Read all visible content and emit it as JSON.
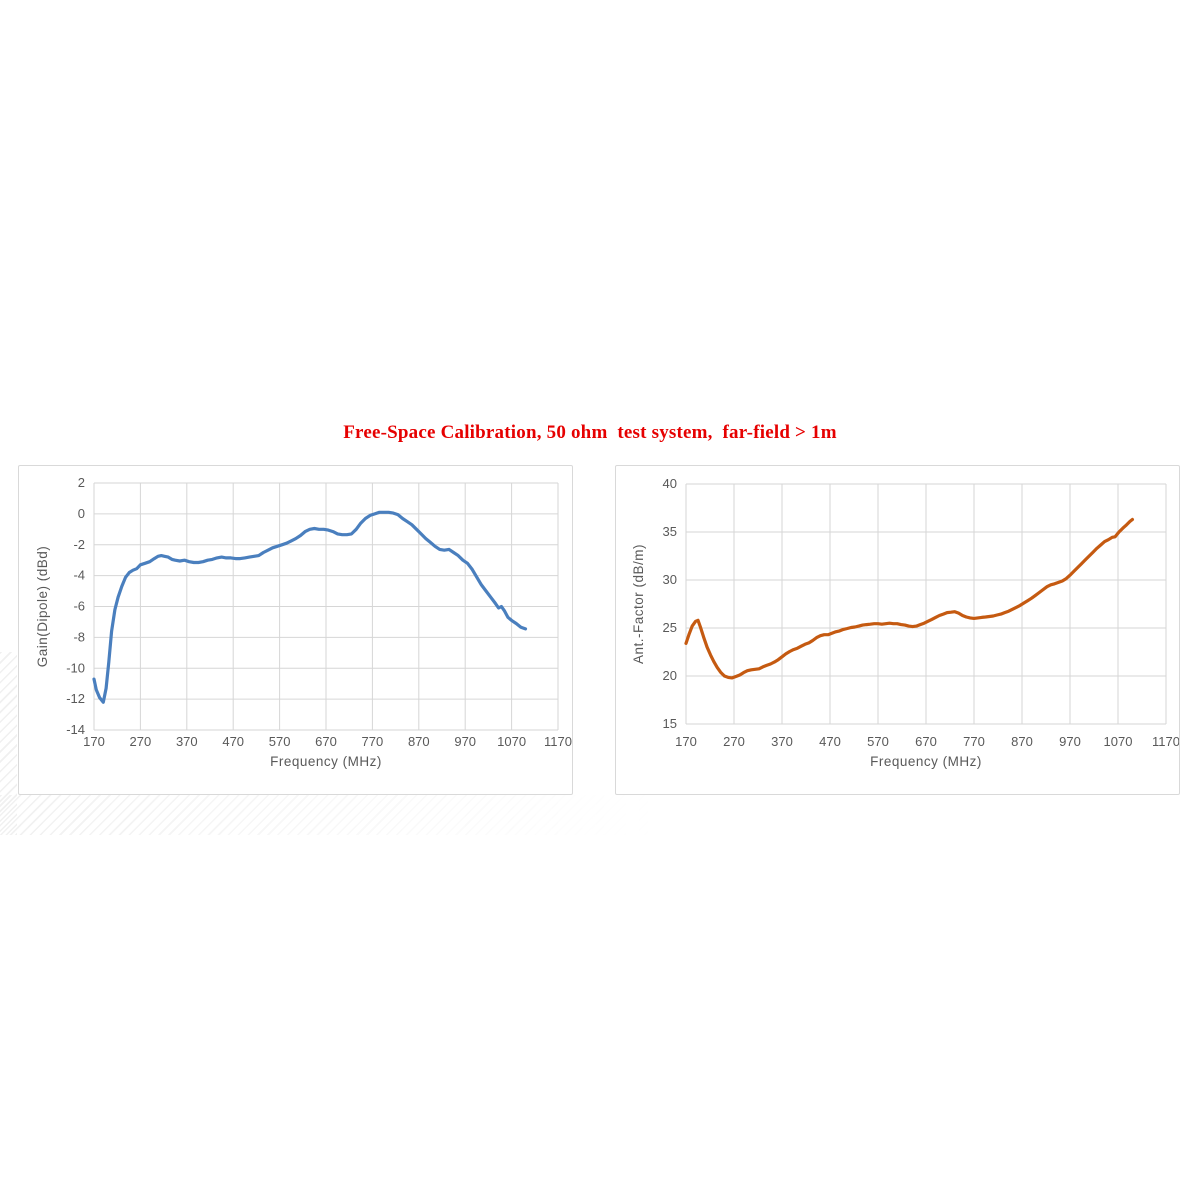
{
  "title": {
    "text": "Free-Space Calibration, 50 ohm  test system,  far-field > 1m",
    "color": "#e60000"
  },
  "style": {
    "grid_color": "#d6d6d6",
    "tick_color": "#595959",
    "panel_border": "#d9d9d9"
  },
  "chart_data": [
    {
      "type": "line",
      "title": "",
      "xlabel": "Frequency (MHz)",
      "ylabel": "Gain(Dipole) (dBd)",
      "xlim": [
        170,
        1170
      ],
      "xtick_step": 100,
      "xticks": [
        170,
        270,
        370,
        470,
        570,
        670,
        770,
        870,
        970,
        1070,
        1170
      ],
      "ylim": [
        -14,
        2
      ],
      "ytick_step": 2,
      "yticks": [
        2,
        0,
        -2,
        -4,
        -6,
        -8,
        -10,
        -12,
        -14
      ],
      "grid": true,
      "legend": "none",
      "series": [
        {
          "name": "Gain (dBd)",
          "color": "#4a7fbe",
          "points": [
            [
              170,
              -10.7
            ],
            [
              175,
              -11.4
            ],
            [
              182,
              -11.9
            ],
            [
              190,
              -12.2
            ],
            [
              196,
              -11.3
            ],
            [
              202,
              -9.6
            ],
            [
              208,
              -7.6
            ],
            [
              215,
              -6.2
            ],
            [
              222,
              -5.4
            ],
            [
              230,
              -4.7
            ],
            [
              238,
              -4.1
            ],
            [
              246,
              -3.8
            ],
            [
              254,
              -3.65
            ],
            [
              262,
              -3.55
            ],
            [
              270,
              -3.3
            ],
            [
              280,
              -3.2
            ],
            [
              290,
              -3.1
            ],
            [
              300,
              -2.9
            ],
            [
              308,
              -2.75
            ],
            [
              315,
              -2.7
            ],
            [
              322,
              -2.75
            ],
            [
              330,
              -2.8
            ],
            [
              338,
              -2.95
            ],
            [
              345,
              -3.0
            ],
            [
              355,
              -3.05
            ],
            [
              365,
              -3.0
            ],
            [
              375,
              -3.1
            ],
            [
              385,
              -3.15
            ],
            [
              395,
              -3.15
            ],
            [
              405,
              -3.1
            ],
            [
              415,
              -3.0
            ],
            [
              425,
              -2.95
            ],
            [
              435,
              -2.85
            ],
            [
              445,
              -2.8
            ],
            [
              455,
              -2.85
            ],
            [
              465,
              -2.85
            ],
            [
              475,
              -2.9
            ],
            [
              485,
              -2.9
            ],
            [
              495,
              -2.85
            ],
            [
              505,
              -2.8
            ],
            [
              515,
              -2.75
            ],
            [
              525,
              -2.7
            ],
            [
              535,
              -2.5
            ],
            [
              545,
              -2.35
            ],
            [
              555,
              -2.2
            ],
            [
              565,
              -2.1
            ],
            [
              575,
              -2.0
            ],
            [
              585,
              -1.9
            ],
            [
              595,
              -1.75
            ],
            [
              605,
              -1.6
            ],
            [
              615,
              -1.4
            ],
            [
              625,
              -1.15
            ],
            [
              635,
              -1.0
            ],
            [
              645,
              -0.95
            ],
            [
              655,
              -1.0
            ],
            [
              665,
              -1.0
            ],
            [
              675,
              -1.05
            ],
            [
              685,
              -1.15
            ],
            [
              695,
              -1.3
            ],
            [
              705,
              -1.35
            ],
            [
              715,
              -1.35
            ],
            [
              725,
              -1.3
            ],
            [
              735,
              -1.0
            ],
            [
              745,
              -0.6
            ],
            [
              755,
              -0.3
            ],
            [
              765,
              -0.1
            ],
            [
              775,
              0.0
            ],
            [
              785,
              0.1
            ],
            [
              795,
              0.1
            ],
            [
              805,
              0.1
            ],
            [
              815,
              0.05
            ],
            [
              825,
              -0.05
            ],
            [
              835,
              -0.3
            ],
            [
              845,
              -0.5
            ],
            [
              855,
              -0.7
            ],
            [
              865,
              -1.0
            ],
            [
              875,
              -1.3
            ],
            [
              885,
              -1.6
            ],
            [
              895,
              -1.85
            ],
            [
              905,
              -2.1
            ],
            [
              915,
              -2.3
            ],
            [
              925,
              -2.35
            ],
            [
              935,
              -2.3
            ],
            [
              945,
              -2.5
            ],
            [
              955,
              -2.7
            ],
            [
              965,
              -3.0
            ],
            [
              975,
              -3.2
            ],
            [
              985,
              -3.6
            ],
            [
              995,
              -4.1
            ],
            [
              1005,
              -4.6
            ],
            [
              1015,
              -5.0
            ],
            [
              1025,
              -5.4
            ],
            [
              1035,
              -5.8
            ],
            [
              1042,
              -6.1
            ],
            [
              1048,
              -6.0
            ],
            [
              1055,
              -6.3
            ],
            [
              1062,
              -6.7
            ],
            [
              1070,
              -6.9
            ],
            [
              1080,
              -7.1
            ],
            [
              1090,
              -7.35
            ],
            [
              1100,
              -7.45
            ]
          ]
        }
      ]
    },
    {
      "type": "line",
      "title": "",
      "xlabel": "Frequency (MHz)",
      "ylabel": "Ant.-Factor (dB/m)",
      "xlim": [
        170,
        1170
      ],
      "xtick_step": 100,
      "xticks": [
        170,
        270,
        370,
        470,
        570,
        670,
        770,
        870,
        970,
        1070,
        1170
      ],
      "ylim": [
        15,
        40
      ],
      "ytick_step": 5,
      "yticks": [
        40,
        35,
        30,
        25,
        20,
        15
      ],
      "grid": true,
      "legend": "none",
      "series": [
        {
          "name": "Antenna Factor (dB/m)",
          "color": "#c55a11",
          "points": [
            [
              170,
              23.4
            ],
            [
              176,
              24.3
            ],
            [
              183,
              25.2
            ],
            [
              190,
              25.7
            ],
            [
              195,
              25.8
            ],
            [
              200,
              25.1
            ],
            [
              207,
              24.0
            ],
            [
              214,
              23.0
            ],
            [
              221,
              22.2
            ],
            [
              228,
              21.5
            ],
            [
              235,
              20.9
            ],
            [
              242,
              20.4
            ],
            [
              250,
              20.0
            ],
            [
              258,
              19.85
            ],
            [
              266,
              19.8
            ],
            [
              274,
              19.95
            ],
            [
              282,
              20.1
            ],
            [
              290,
              20.35
            ],
            [
              298,
              20.55
            ],
            [
              306,
              20.65
            ],
            [
              314,
              20.7
            ],
            [
              322,
              20.75
            ],
            [
              330,
              20.95
            ],
            [
              338,
              21.1
            ],
            [
              346,
              21.25
            ],
            [
              354,
              21.45
            ],
            [
              362,
              21.7
            ],
            [
              370,
              22.0
            ],
            [
              378,
              22.3
            ],
            [
              386,
              22.55
            ],
            [
              394,
              22.75
            ],
            [
              402,
              22.9
            ],
            [
              410,
              23.1
            ],
            [
              418,
              23.3
            ],
            [
              426,
              23.45
            ],
            [
              434,
              23.7
            ],
            [
              442,
              24.0
            ],
            [
              450,
              24.2
            ],
            [
              458,
              24.3
            ],
            [
              466,
              24.3
            ],
            [
              474,
              24.45
            ],
            [
              482,
              24.6
            ],
            [
              490,
              24.7
            ],
            [
              498,
              24.85
            ],
            [
              506,
              24.95
            ],
            [
              514,
              25.05
            ],
            [
              522,
              25.1
            ],
            [
              530,
              25.2
            ],
            [
              538,
              25.3
            ],
            [
              546,
              25.35
            ],
            [
              554,
              25.4
            ],
            [
              562,
              25.45
            ],
            [
              570,
              25.45
            ],
            [
              578,
              25.4
            ],
            [
              586,
              25.45
            ],
            [
              594,
              25.5
            ],
            [
              602,
              25.45
            ],
            [
              610,
              25.45
            ],
            [
              618,
              25.35
            ],
            [
              626,
              25.3
            ],
            [
              634,
              25.2
            ],
            [
              642,
              25.15
            ],
            [
              650,
              25.2
            ],
            [
              658,
              25.35
            ],
            [
              666,
              25.5
            ],
            [
              674,
              25.7
            ],
            [
              682,
              25.9
            ],
            [
              690,
              26.1
            ],
            [
              698,
              26.3
            ],
            [
              706,
              26.45
            ],
            [
              714,
              26.6
            ],
            [
              722,
              26.65
            ],
            [
              730,
              26.7
            ],
            [
              738,
              26.55
            ],
            [
              746,
              26.3
            ],
            [
              754,
              26.15
            ],
            [
              762,
              26.05
            ],
            [
              770,
              26.0
            ],
            [
              778,
              26.05
            ],
            [
              786,
              26.1
            ],
            [
              794,
              26.15
            ],
            [
              802,
              26.2
            ],
            [
              810,
              26.25
            ],
            [
              818,
              26.35
            ],
            [
              826,
              26.45
            ],
            [
              834,
              26.6
            ],
            [
              842,
              26.75
            ],
            [
              850,
              26.95
            ],
            [
              858,
              27.15
            ],
            [
              866,
              27.35
            ],
            [
              874,
              27.6
            ],
            [
              882,
              27.85
            ],
            [
              890,
              28.1
            ],
            [
              898,
              28.4
            ],
            [
              906,
              28.7
            ],
            [
              914,
              29.0
            ],
            [
              922,
              29.3
            ],
            [
              930,
              29.5
            ],
            [
              938,
              29.6
            ],
            [
              946,
              29.75
            ],
            [
              954,
              29.9
            ],
            [
              962,
              30.15
            ],
            [
              970,
              30.5
            ],
            [
              978,
              30.9
            ],
            [
              986,
              31.3
            ],
            [
              994,
              31.7
            ],
            [
              1002,
              32.1
            ],
            [
              1010,
              32.5
            ],
            [
              1018,
              32.9
            ],
            [
              1026,
              33.3
            ],
            [
              1034,
              33.65
            ],
            [
              1042,
              34.0
            ],
            [
              1050,
              34.2
            ],
            [
              1058,
              34.45
            ],
            [
              1064,
              34.5
            ],
            [
              1072,
              35.0
            ],
            [
              1080,
              35.4
            ],
            [
              1088,
              35.75
            ],
            [
              1095,
              36.1
            ],
            [
              1100,
              36.3
            ]
          ]
        }
      ]
    }
  ]
}
